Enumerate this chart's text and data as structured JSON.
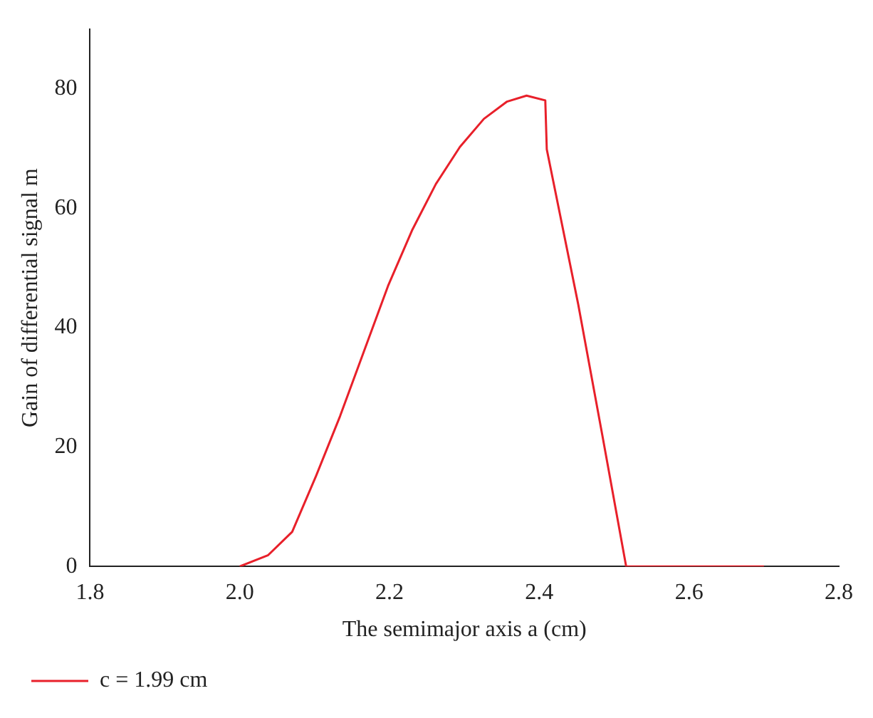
{
  "chart_data": {
    "type": "line",
    "xlabel": "The semimajor axis a (cm)",
    "ylabel": "Gain of differential signal m",
    "x": [
      2.0,
      2.038,
      2.07,
      2.102,
      2.134,
      2.166,
      2.198,
      2.23,
      2.262,
      2.294,
      2.326,
      2.357,
      2.383,
      2.408,
      2.41,
      2.452,
      2.484,
      2.516,
      2.7
    ],
    "series": [
      {
        "name": "c = 1.99 cm",
        "color": "#e8202a",
        "values": [
          0,
          1.9,
          5.8,
          15.2,
          25.2,
          36.1,
          47.0,
          56.3,
          64.1,
          70.3,
          75.0,
          77.9,
          78.9,
          78.1,
          69.9,
          43.9,
          22.1,
          0,
          0
        ]
      }
    ],
    "xlim": [
      1.8,
      2.8
    ],
    "xticks": [
      1.8,
      {
        "value": 2,
        "label": "2.0"
      },
      2.2,
      2.4,
      2.6,
      2.8
    ],
    "ylim": [
      0,
      90
    ],
    "yticks": [
      0,
      20,
      40,
      60,
      80
    ],
    "grid": false,
    "legend": "bottom left",
    "marker": "none",
    "line_style": "solid"
  }
}
